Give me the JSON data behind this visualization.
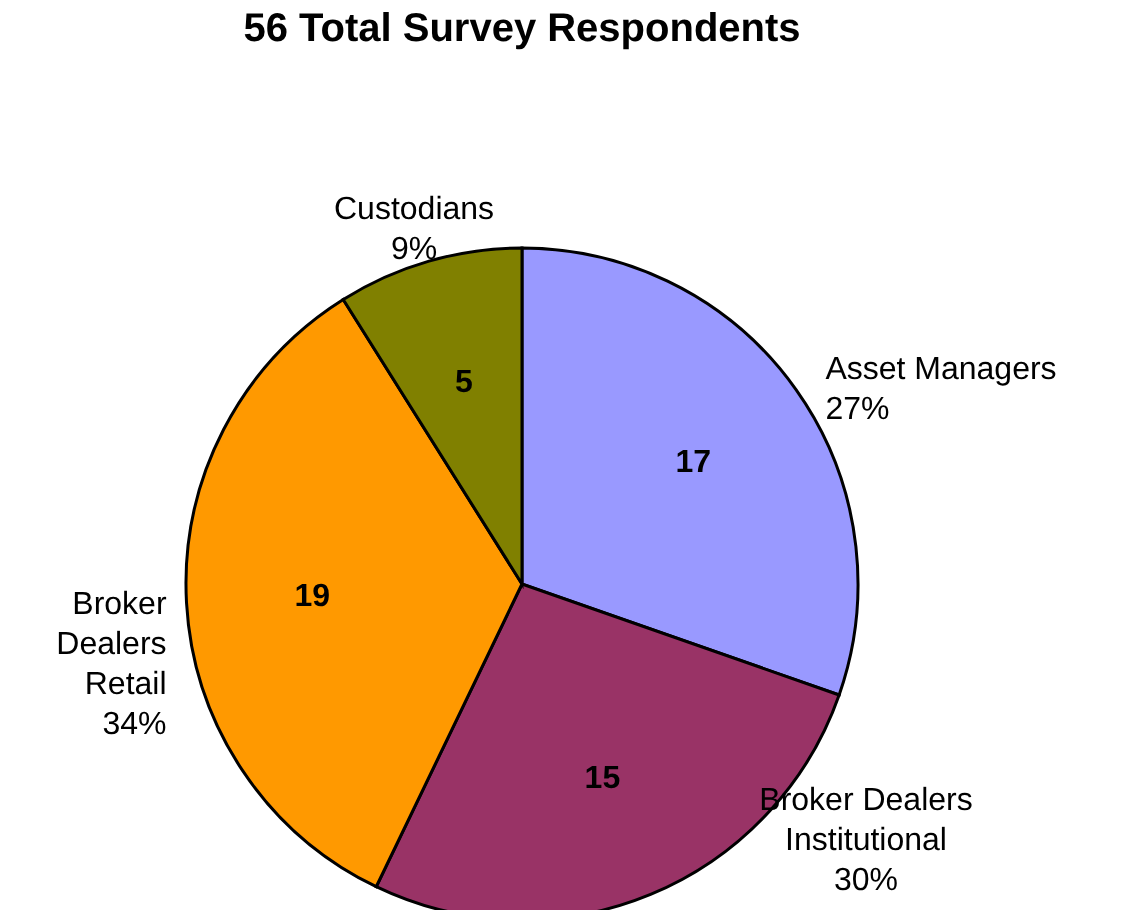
{
  "chart_data": {
    "type": "pie",
    "title": "56 Total Survey Respondents",
    "categories": [
      "Asset Managers",
      "Broker Dealers Institutional",
      "Broker Dealers Retail",
      "Custodians"
    ],
    "values": [
      17,
      15,
      19,
      5
    ],
    "colors": [
      "#9999ff",
      "#993366",
      "#ff9900",
      "#808000"
    ],
    "data_labels": true,
    "annotations": [
      "27%",
      "30%",
      "34%",
      "9%"
    ]
  }
}
